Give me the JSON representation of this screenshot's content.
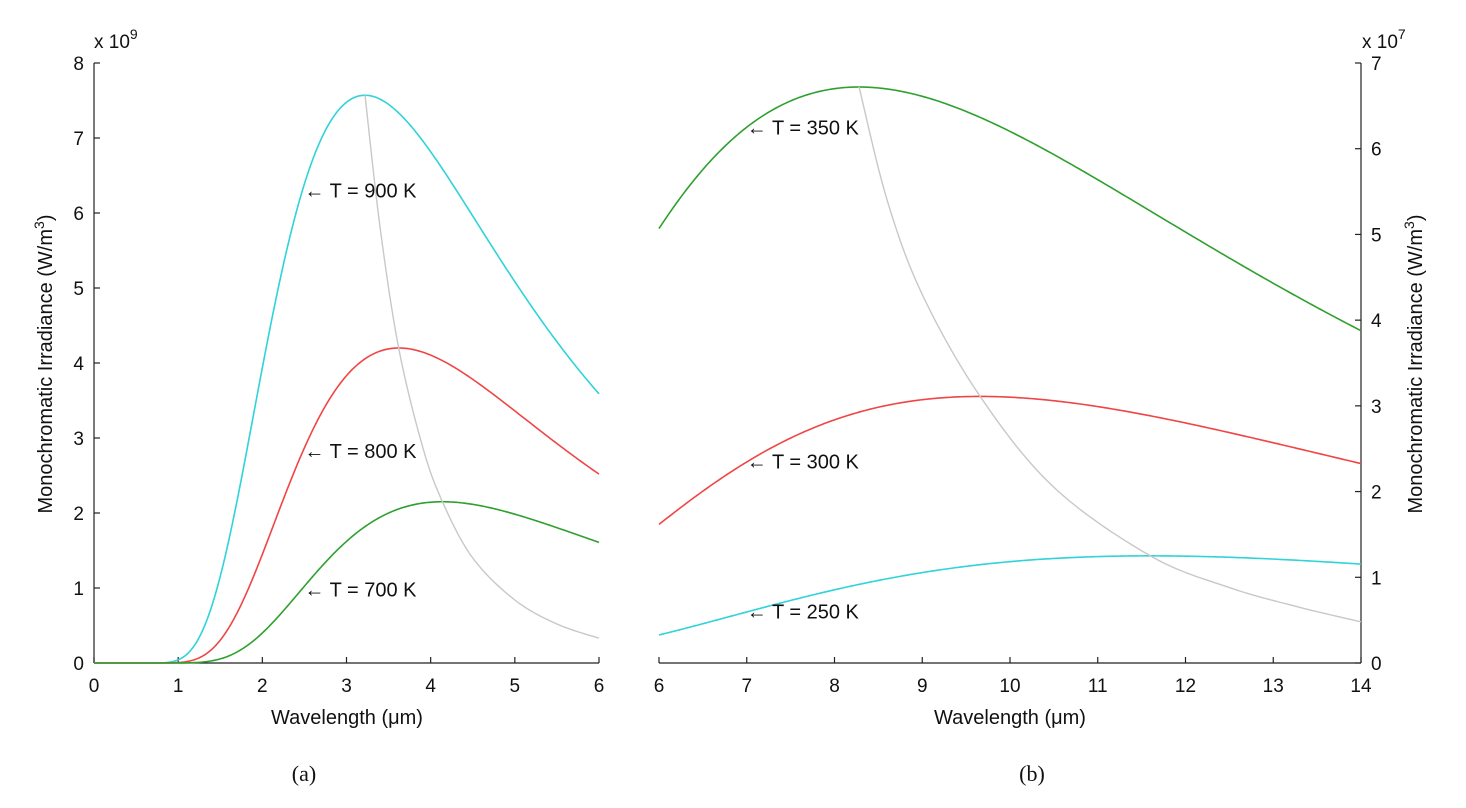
{
  "chart_data": [
    {
      "type": "line",
      "panel_caption": "(a)",
      "xlabel": "Wavelength (μm)",
      "ylabel": "Monochromatic Irradiance (W/m",
      "ylabel_sup": "3",
      "ylabel_close": ")",
      "multiplier_base": "x 10",
      "multiplier_exp": "9",
      "xlim": [
        0,
        6
      ],
      "ylim": [
        0,
        8
      ],
      "x_ticks": [
        "0",
        "1",
        "2",
        "3",
        "4",
        "5",
        "6"
      ],
      "y_ticks": [
        "0",
        "1",
        "2",
        "3",
        "4",
        "5",
        "6",
        "7",
        "8"
      ],
      "y_axis_side": "left",
      "grid": false,
      "series": [
        {
          "name": "T = 900 K",
          "color": "#2fd3d8",
          "kind": "planck",
          "temperature": 900,
          "x_start": 0.5,
          "x_end": 6,
          "peak_x": 3.22,
          "peak_y": 7.57,
          "label": "T = 900 K"
        },
        {
          "name": "T = 800 K",
          "color": "#f04545",
          "kind": "planck",
          "temperature": 800,
          "x_start": 0.5,
          "x_end": 6,
          "peak_x": 3.62,
          "peak_y": 4.2,
          "label": "T = 800 K"
        },
        {
          "name": "T = 700 K",
          "color": "#2ea02e",
          "kind": "planck",
          "temperature": 700,
          "x_start": 0.5,
          "x_end": 6,
          "peak_x": 4.14,
          "peak_y": 2.15,
          "label": "T = 700 K"
        },
        {
          "name": "",
          "color": "#c8c8c8",
          "kind": "wien-peak-locus",
          "x_start": 3.22,
          "x_end": 6,
          "x": [
            3.22,
            3.4,
            3.62,
            3.9,
            4.14,
            4.5,
            5.0,
            5.5,
            6.0
          ],
          "y": [
            7.57,
            5.8,
            4.2,
            2.9,
            2.15,
            1.4,
            0.84,
            0.52,
            0.33
          ]
        }
      ],
      "annotations": [
        {
          "text": "← T = 900 K",
          "x": 2.5,
          "y": 6.3
        },
        {
          "text": "← T = 800 K",
          "x": 2.5,
          "y": 2.83
        },
        {
          "text": "← T = 700 K",
          "x": 2.5,
          "y": 0.98
        }
      ]
    },
    {
      "type": "line",
      "panel_caption": "(b)",
      "xlabel": "Wavelength (μm)",
      "ylabel": "Monochromatic Irradiance (W/m",
      "ylabel_sup": "3",
      "ylabel_close": ")",
      "multiplier_base": "x 10",
      "multiplier_exp": "7",
      "xlim": [
        6,
        14
      ],
      "ylim": [
        0,
        7
      ],
      "x_ticks": [
        "6",
        "7",
        "8",
        "9",
        "10",
        "11",
        "12",
        "13",
        "14"
      ],
      "y_ticks": [
        "0",
        "1",
        "2",
        "3",
        "4",
        "5",
        "6",
        "7"
      ],
      "y_axis_side": "right",
      "grid": false,
      "series": [
        {
          "name": "T = 350 K",
          "color": "#2ea02e",
          "kind": "planck",
          "temperature": 350,
          "x_start": 6,
          "x_end": 14,
          "peak_x": 8.28,
          "peak_y": 6.72,
          "label": "T = 350 K"
        },
        {
          "name": "T = 300 K",
          "color": "#f04545",
          "kind": "planck",
          "temperature": 300,
          "x_start": 6,
          "x_end": 14,
          "peak_x": 9.66,
          "peak_y": 3.11,
          "label": "T = 300 K"
        },
        {
          "name": "T = 250 K",
          "color": "#2fd3d8",
          "kind": "planck",
          "temperature": 250,
          "x_start": 6,
          "x_end": 14,
          "peak_x": 11.6,
          "peak_y": 1.25,
          "label": "T = 250 K"
        },
        {
          "name": "",
          "color": "#c8c8c8",
          "kind": "wien-peak-locus",
          "x_start": 8.28,
          "x_end": 14,
          "x": [
            8.28,
            8.6,
            9.0,
            9.66,
            10.5,
            11.6,
            12.5,
            13.3,
            14.0
          ],
          "y": [
            6.72,
            5.4,
            4.3,
            3.11,
            2.05,
            1.25,
            0.88,
            0.65,
            0.48
          ]
        }
      ],
      "annotations": [
        {
          "text": "← T = 350 K",
          "x": 7.0,
          "y": 6.25
        },
        {
          "text": "← T = 300 K",
          "x": 7.0,
          "y": 2.35
        },
        {
          "text": "← T = 250 K",
          "x": 7.0,
          "y": 0.6
        }
      ]
    }
  ]
}
